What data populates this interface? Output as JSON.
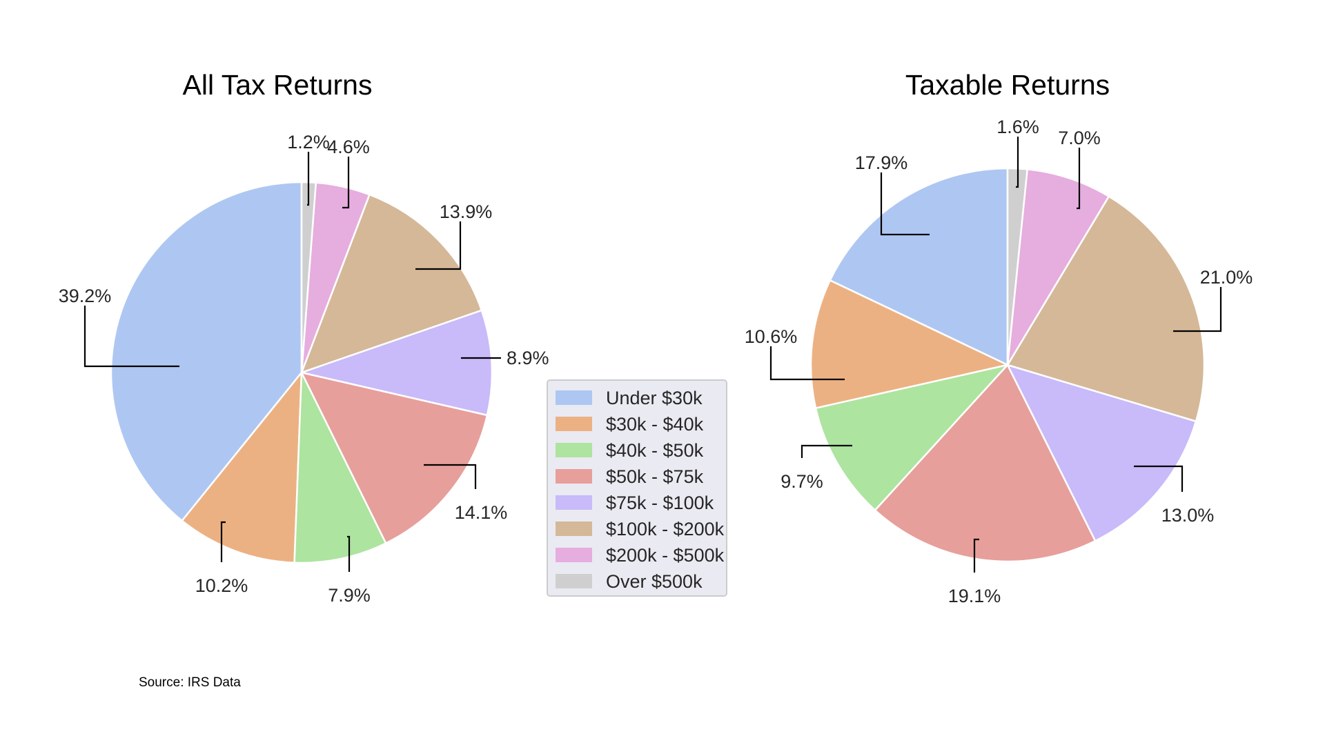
{
  "source_note": "Source: IRS Data",
  "legend": {
    "placement": "center",
    "items": [
      "Under $30k",
      "$30k - $40k",
      "$40k - $50k",
      "$50k - $75k",
      "$75k - $100k",
      "$100k - $200k",
      "$200k - $500k",
      "Over $500k"
    ]
  },
  "colors": [
    "#aec7f2",
    "#ecb183",
    "#ade4a0",
    "#e79f9b",
    "#c9baf9",
    "#d4b898",
    "#e6addf",
    "#cfcfcf"
  ],
  "chart_data": [
    {
      "type": "pie",
      "title": "All Tax Returns",
      "categories": [
        "Under $30k",
        "$30k - $40k",
        "$40k - $50k",
        "$50k - $75k",
        "$75k - $100k",
        "$100k - $200k",
        "$200k - $500k",
        "Over $500k"
      ],
      "values": [
        39.2,
        10.2,
        7.9,
        14.1,
        8.9,
        13.9,
        4.6,
        1.2
      ],
      "labels": [
        "39.2%",
        "10.2%",
        "7.9%",
        "14.1%",
        "8.9%",
        "13.9%",
        "4.6%",
        "1.2%"
      ],
      "start_angle": "top",
      "direction": "counterclockwise"
    },
    {
      "type": "pie",
      "title": "Taxable Returns",
      "categories": [
        "Under $30k",
        "$30k - $40k",
        "$40k - $50k",
        "$50k - $75k",
        "$75k - $100k",
        "$100k - $200k",
        "$200k - $500k",
        "Over $500k"
      ],
      "values": [
        17.9,
        10.6,
        9.7,
        19.1,
        13.0,
        21.0,
        7.0,
        1.6
      ],
      "labels": [
        "17.9%",
        "10.6%",
        "9.7%",
        "19.1%",
        "13.0%",
        "21.0%",
        "7.0%",
        "1.6%"
      ],
      "start_angle": "top",
      "direction": "counterclockwise"
    }
  ]
}
